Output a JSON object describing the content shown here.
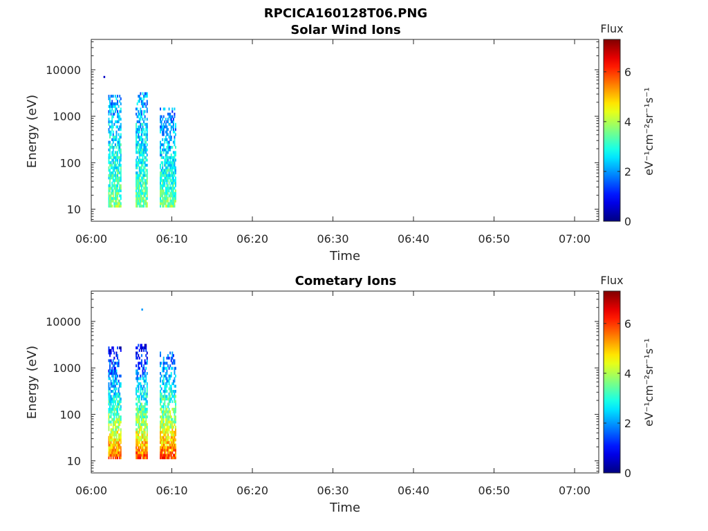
{
  "figure": {
    "title": "RPCICA160128T06.PNG"
  },
  "colorbar": {
    "title": "Flux",
    "unit_label": "eV⁻¹cm⁻²sr⁻¹s⁻¹",
    "range": [
      0,
      7.3
    ],
    "ticks": [
      "0",
      "2",
      "4",
      "6"
    ],
    "tick_values": [
      0,
      2,
      4,
      6
    ],
    "colormap": "jet"
  },
  "chart_data": [
    {
      "type": "heatmap",
      "title": "Solar Wind Ions",
      "xlabel": "Time",
      "ylabel": "Energy (eV)",
      "x_range": [
        "06:00",
        "07:03"
      ],
      "x_ticks": [
        "06:00",
        "06:10",
        "06:20",
        "06:30",
        "06:40",
        "06:50",
        "07:00"
      ],
      "y_scale": "log",
      "y_range": [
        5.5,
        45000
      ],
      "y_ticks": [
        "10",
        "100",
        "1000",
        "10000"
      ],
      "z_range": [
        0,
        7.3
      ],
      "bursts": [
        {
          "t_start": "06:02.1",
          "t_end": "06:03.6",
          "e_min": 11,
          "e_max": 2600,
          "z_low_energy": 3.6,
          "z_high_energy": 2.0
        },
        {
          "t_start": "06:05.5",
          "t_end": "06:06.9",
          "e_min": 11,
          "e_max": 3000,
          "z_low_energy": 3.6,
          "z_high_energy": 2.0
        },
        {
          "t_start": "06:08.5",
          "t_end": "06:10.4",
          "e_min": 11,
          "e_max": 1400,
          "z_low_energy": 3.6,
          "z_high_energy": 1.8
        }
      ],
      "isolated_points": [
        {
          "t": "06:01.6",
          "e": 7000,
          "z": 0.5
        }
      ]
    },
    {
      "type": "heatmap",
      "title": "Cometary Ions",
      "xlabel": "Time",
      "ylabel": "Energy (eV)",
      "x_range": [
        "06:00",
        "07:03"
      ],
      "x_ticks": [
        "06:00",
        "06:10",
        "06:20",
        "06:30",
        "06:40",
        "06:50",
        "07:00"
      ],
      "y_scale": "log",
      "y_range": [
        5.5,
        45000
      ],
      "y_ticks": [
        "10",
        "100",
        "1000",
        "10000"
      ],
      "z_range": [
        0,
        7.3
      ],
      "bursts": [
        {
          "t_start": "06:02.1",
          "t_end": "06:03.6",
          "e_min": 11,
          "e_max": 2600,
          "z_low_energy": 5.8,
          "z_high_energy": 0.8
        },
        {
          "t_start": "06:05.5",
          "t_end": "06:06.9",
          "e_min": 11,
          "e_max": 3000,
          "z_low_energy": 5.8,
          "z_high_energy": 0.8
        },
        {
          "t_start": "06:08.5",
          "t_end": "06:10.4",
          "e_min": 11,
          "e_max": 2000,
          "z_low_energy": 5.9,
          "z_high_energy": 1.5
        }
      ],
      "isolated_points": [
        {
          "t": "06:06.3",
          "e": 18000,
          "z": 2.0
        }
      ]
    }
  ]
}
